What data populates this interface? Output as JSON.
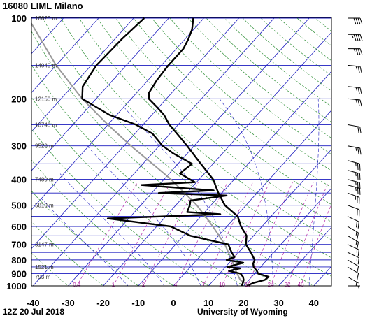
{
  "header": {
    "title": "16080 LIML Milano"
  },
  "footer": {
    "datestamp": "12Z 20 Jul 2018",
    "source": "University of Wyoming"
  },
  "chart_data": {
    "type": "skew-t",
    "ylabel_ticks": [
      "100",
      "200",
      "300",
      "400",
      "500",
      "600",
      "700",
      "800",
      "900",
      "1000"
    ],
    "pressure_ticks": [
      100,
      200,
      300,
      400,
      500,
      600,
      700,
      800,
      900,
      1000
    ],
    "xtick_labels": [
      "-40",
      "-30",
      "-20",
      "-10",
      "0",
      "10",
      "20",
      "30",
      "40"
    ],
    "xticks": [
      -40,
      -30,
      -20,
      -10,
      0,
      10,
      20,
      30,
      40
    ],
    "xlim": [
      -40,
      45
    ],
    "plim": [
      1050,
      100
    ],
    "heights": [
      {
        "p": 100,
        "label": "16620 m"
      },
      {
        "p": 150,
        "label": "14040 m"
      },
      {
        "p": 200,
        "label": "12150 m"
      },
      {
        "p": 250,
        "label": "10740 m"
      },
      {
        "p": 300,
        "label": "9520 m"
      },
      {
        "p": 400,
        "label": "7480 m"
      },
      {
        "p": 500,
        "label": "5810 m"
      },
      {
        "p": 700,
        "label": "3147 m"
      },
      {
        "p": 850,
        "label": "1521 m"
      },
      {
        "p": 925,
        "label": "793 m"
      }
    ],
    "mixing_ratio_labels": [
      "0.4",
      "1",
      "2",
      "4",
      "7",
      "10",
      "16",
      "24",
      "32",
      "40"
    ],
    "mixing_ratio_values": [
      0.4,
      1,
      2,
      4,
      7,
      10,
      16,
      24,
      32,
      40
    ],
    "mixing_ratio_label_pressure": 1000,
    "temperature": [
      {
        "p": 1000,
        "t": 21.0
      },
      {
        "p": 975,
        "t": 22.0
      },
      {
        "p": 950,
        "t": 24.5
      },
      {
        "p": 925,
        "t": 24.8
      },
      {
        "p": 900,
        "t": 21.0
      },
      {
        "p": 880,
        "t": 20.0
      },
      {
        "p": 850,
        "t": 18.0
      },
      {
        "p": 825,
        "t": 17.0
      },
      {
        "p": 800,
        "t": 16.5
      },
      {
        "p": 775,
        "t": 15.0
      },
      {
        "p": 750,
        "t": 13.5
      },
      {
        "p": 700,
        "t": 10.0
      },
      {
        "p": 650,
        "t": 8.0
      },
      {
        "p": 600,
        "t": 4.0
      },
      {
        "p": 550,
        "t": 0.5
      },
      {
        "p": 500,
        "t": -6.0
      },
      {
        "p": 450,
        "t": -11.0
      },
      {
        "p": 400,
        "t": -16.0
      },
      {
        "p": 350,
        "t": -23.5
      },
      {
        "p": 300,
        "t": -32.0
      },
      {
        "p": 270,
        "t": -38.0
      },
      {
        "p": 250,
        "t": -42.5
      },
      {
        "p": 230,
        "t": -46.5
      },
      {
        "p": 215,
        "t": -50.5
      },
      {
        "p": 200,
        "t": -55.0
      },
      {
        "p": 190,
        "t": -56.5
      },
      {
        "p": 170,
        "t": -57.5
      },
      {
        "p": 150,
        "t": -58.0
      },
      {
        "p": 130,
        "t": -58.0
      },
      {
        "p": 120,
        "t": -59.0
      },
      {
        "p": 110,
        "t": -60.5
      },
      {
        "p": 100,
        "t": -63.0
      }
    ],
    "dewpoint": [
      {
        "p": 1000,
        "t": 19.5
      },
      {
        "p": 975,
        "t": 19.0
      },
      {
        "p": 950,
        "t": 18.5
      },
      {
        "p": 925,
        "t": 17.5
      },
      {
        "p": 900,
        "t": 16.0
      },
      {
        "p": 880,
        "t": 12.0
      },
      {
        "p": 860,
        "t": 14.5
      },
      {
        "p": 850,
        "t": 10.5
      },
      {
        "p": 820,
        "t": 14.0
      },
      {
        "p": 800,
        "t": 8.5
      },
      {
        "p": 780,
        "t": 10.0
      },
      {
        "p": 750,
        "t": 8.0
      },
      {
        "p": 700,
        "t": 5.0
      },
      {
        "p": 650,
        "t": -8.0
      },
      {
        "p": 600,
        "t": -16.0
      },
      {
        "p": 560,
        "t": -36.0
      },
      {
        "p": 540,
        "t": -5.0
      },
      {
        "p": 530,
        "t": -15.0
      },
      {
        "p": 500,
        "t": -16.0
      },
      {
        "p": 480,
        "t": -17.0
      },
      {
        "p": 460,
        "t": -8.0
      },
      {
        "p": 450,
        "t": -28.0
      },
      {
        "p": 440,
        "t": -13.0
      },
      {
        "p": 420,
        "t": -35.0
      },
      {
        "p": 410,
        "t": -20.5
      },
      {
        "p": 380,
        "t": -27.0
      },
      {
        "p": 350,
        "t": -26.0
      },
      {
        "p": 320,
        "t": -34.0
      },
      {
        "p": 300,
        "t": -39.0
      },
      {
        "p": 270,
        "t": -45.0
      },
      {
        "p": 250,
        "t": -52.0
      },
      {
        "p": 230,
        "t": -62.0
      },
      {
        "p": 200,
        "t": -74.0
      },
      {
        "p": 180,
        "t": -77.0
      },
      {
        "p": 150,
        "t": -78.5
      },
      {
        "p": 120,
        "t": -78.0
      },
      {
        "p": 100,
        "t": -77.0
      }
    ],
    "parcel": [
      {
        "p": 1000,
        "t": 21.5
      },
      {
        "p": 950,
        "t": 17.5
      },
      {
        "p": 900,
        "t": 15.0
      },
      {
        "p": 850,
        "t": 12.5
      },
      {
        "p": 800,
        "t": 10.0
      },
      {
        "p": 700,
        "t": 4.0
      },
      {
        "p": 600,
        "t": -4.0
      },
      {
        "p": 500,
        "t": -14.0
      },
      {
        "p": 400,
        "t": -28.0
      },
      {
        "p": 300,
        "t": -48.0
      },
      {
        "p": 250,
        "t": -60.0
      },
      {
        "p": 200,
        "t": -74.0
      },
      {
        "p": 150,
        "t": -90.0
      },
      {
        "p": 100,
        "t": -110.0
      }
    ],
    "wind_barbs": [
      {
        "p": 1000,
        "spd": 5,
        "dir": 270
      },
      {
        "p": 925,
        "spd": 5,
        "dir": 300
      },
      {
        "p": 850,
        "spd": 10,
        "dir": 300
      },
      {
        "p": 800,
        "spd": 10,
        "dir": 300
      },
      {
        "p": 750,
        "spd": 15,
        "dir": 295
      },
      {
        "p": 700,
        "spd": 15,
        "dir": 295
      },
      {
        "p": 650,
        "spd": 15,
        "dir": 300
      },
      {
        "p": 600,
        "spd": 15,
        "dir": 300
      },
      {
        "p": 550,
        "spd": 20,
        "dir": 295
      },
      {
        "p": 500,
        "spd": 20,
        "dir": 290
      },
      {
        "p": 450,
        "spd": 25,
        "dir": 290
      },
      {
        "p": 420,
        "spd": 25,
        "dir": 285
      },
      {
        "p": 400,
        "spd": 25,
        "dir": 285
      },
      {
        "p": 370,
        "spd": 25,
        "dir": 285
      },
      {
        "p": 340,
        "spd": 25,
        "dir": 285
      },
      {
        "p": 300,
        "spd": 25,
        "dir": 280
      },
      {
        "p": 250,
        "spd": 20,
        "dir": 280
      },
      {
        "p": 200,
        "spd": 25,
        "dir": 275
      },
      {
        "p": 180,
        "spd": 25,
        "dir": 275
      },
      {
        "p": 150,
        "spd": 25,
        "dir": 275
      },
      {
        "p": 130,
        "spd": 35,
        "dir": 270
      },
      {
        "p": 115,
        "spd": 45,
        "dir": 270
      },
      {
        "p": 100,
        "spd": 40,
        "dir": 270
      }
    ],
    "colors": {
      "isobar": "#1c1cbf",
      "isotherm": "#1c1cbf",
      "dry_adiabat": "#2e8f35",
      "moist_adiabat": "#1c1cbf",
      "mixing_ratio": "#b52aa8",
      "temperature": "#000000",
      "dewpoint": "#000000",
      "parcel": "#9a9a9a",
      "height_label": "#333333",
      "mixing_label": "#b52aa8",
      "barb": "#000000"
    }
  }
}
